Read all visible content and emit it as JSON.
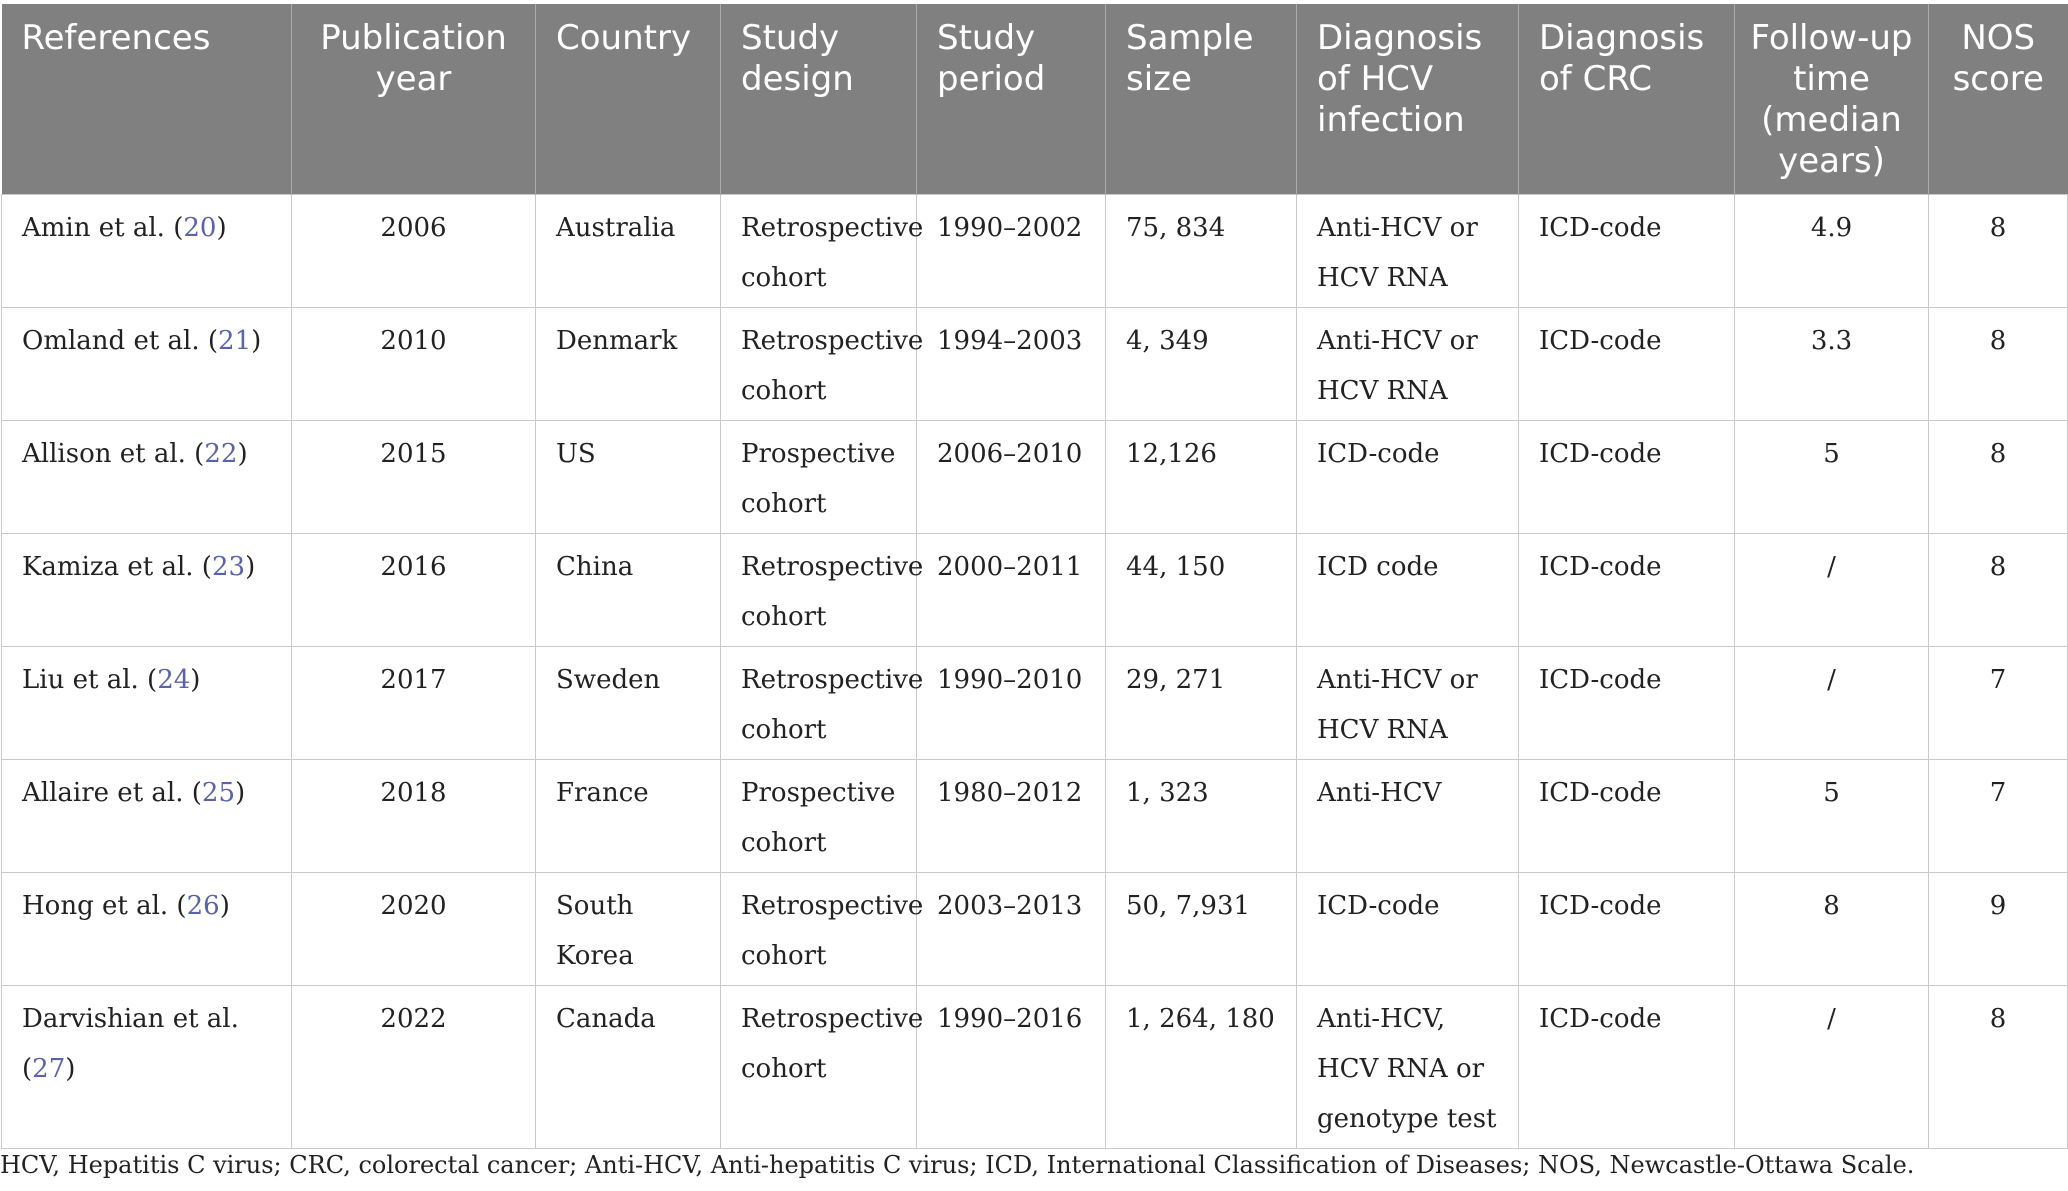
{
  "headers": {
    "references": "References",
    "publication_year": "Publication year",
    "country": "Country",
    "study_design": "Study design",
    "study_period": "Study period",
    "sample_size": "Sample size",
    "diagnosis_hcv": "Diagnosis of HCV infection",
    "diagnosis_crc": "Diagnosis of CRC",
    "follow_up": "Follow-up time (median years)",
    "nos_score": "NOS score"
  },
  "rows": [
    {
      "author": "Amin et al.",
      "ref": "20",
      "year": "2006",
      "country": "Australia",
      "design": "Retrospective cohort",
      "period": "1990–2002",
      "sample": "75, 834",
      "hcv": "Anti-HCV or HCV RNA",
      "crc": "ICD-code",
      "followup": "4.9",
      "nos": "8"
    },
    {
      "author": "Omland et al.",
      "ref": "21",
      "year": "2010",
      "country": "Denmark",
      "design": "Retrospective cohort",
      "period": "1994–2003",
      "sample": "4, 349",
      "hcv": "Anti-HCV or HCV RNA",
      "crc": "ICD-code",
      "followup": "3.3",
      "nos": "8"
    },
    {
      "author": "Allison et al.",
      "ref": "22",
      "year": "2015",
      "country": "US",
      "design": "Prospective cohort",
      "period": "2006–2010",
      "sample": "12,126",
      "hcv": "ICD-code",
      "crc": "ICD-code",
      "followup": "5",
      "nos": "8"
    },
    {
      "author": "Kamiza et al.",
      "ref": "23",
      "year": "2016",
      "country": "China",
      "design": "Retrospective cohort",
      "period": "2000–2011",
      "sample": "44, 150",
      "hcv": "ICD code",
      "crc": "ICD-code",
      "followup": "/",
      "nos": "8"
    },
    {
      "author": "Liu et al.",
      "ref": "24",
      "year": "2017",
      "country": "Sweden",
      "design": "Retrospective cohort",
      "period": "1990–2010",
      "sample": "29, 271",
      "hcv": "Anti-HCV or HCV RNA",
      "crc": "ICD-code",
      "followup": "/",
      "nos": "7"
    },
    {
      "author": "Allaire et al.",
      "ref": "25",
      "year": "2018",
      "country": "France",
      "design": "Prospective cohort",
      "period": "1980–2012",
      "sample": "1, 323",
      "hcv": "Anti-HCV",
      "crc": "ICD-code",
      "followup": "5",
      "nos": "7"
    },
    {
      "author": "Hong et al.",
      "ref": "26",
      "year": "2020",
      "country": "South Korea",
      "design": "Retrospective cohort",
      "period": "2003–2013",
      "sample": "50, 7,931",
      "hcv": "ICD-code",
      "crc": "ICD-code",
      "followup": "8",
      "nos": "9"
    },
    {
      "author": "Darvishian et al.",
      "ref": "27",
      "year": "2022",
      "country": "Canada",
      "design": "Retrospective cohort",
      "period": "1990–2016",
      "sample": "1, 264, 180",
      "hcv": "Anti-HCV, HCV RNA or genotype test",
      "crc": "ICD-code",
      "followup": "/",
      "nos": "8"
    }
  ],
  "footnote": "HCV, Hepatitis C virus; CRC, colorectal cancer; Anti-HCV, Anti-hepatitis C virus; ICD, International Classification of Diseases; NOS, Newcastle-Ottawa Scale."
}
